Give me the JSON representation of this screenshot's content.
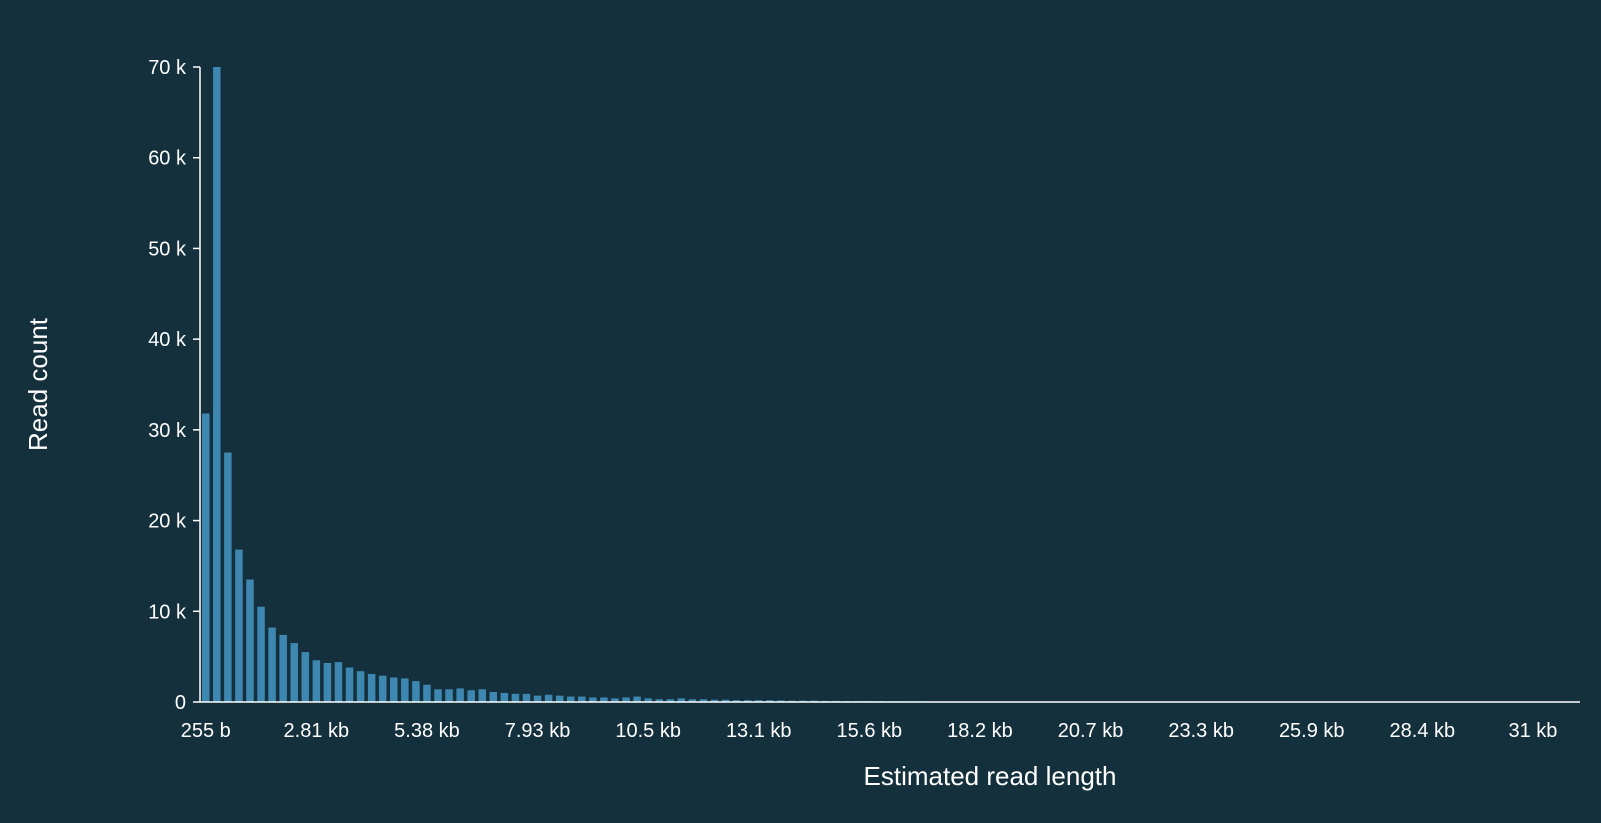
{
  "colors": {
    "background": "#14303d",
    "bar": "#3d87b0",
    "axis": "#ffffff",
    "text": "#ffffff"
  },
  "chart_data": {
    "type": "bar",
    "title": "",
    "xlabel": "Estimated read length",
    "ylabel": "Read count",
    "ylim": [
      0,
      70000
    ],
    "grid": false,
    "legend": "none",
    "y_ticks": [
      {
        "value": 0,
        "label": "0"
      },
      {
        "value": 10000,
        "label": "10 k"
      },
      {
        "value": 20000,
        "label": "20 k"
      },
      {
        "value": 30000,
        "label": "30 k"
      },
      {
        "value": 40000,
        "label": "40 k"
      },
      {
        "value": 50000,
        "label": "50 k"
      },
      {
        "value": 60000,
        "label": "60 k"
      },
      {
        "value": 70000,
        "label": "70 k"
      }
    ],
    "x_ticks": [
      {
        "bin": 0,
        "label": "255 b"
      },
      {
        "bin": 10,
        "label": "2.81 kb"
      },
      {
        "bin": 20,
        "label": "5.38 kb"
      },
      {
        "bin": 30,
        "label": "7.93 kb"
      },
      {
        "bin": 40,
        "label": "10.5 kb"
      },
      {
        "bin": 50,
        "label": "13.1 kb"
      },
      {
        "bin": 60,
        "label": "15.6 kb"
      },
      {
        "bin": 70,
        "label": "18.2 kb"
      },
      {
        "bin": 80,
        "label": "20.7 kb"
      },
      {
        "bin": 90,
        "label": "23.3 kb"
      },
      {
        "bin": 100,
        "label": "25.9 kb"
      },
      {
        "bin": 110,
        "label": "28.4 kb"
      },
      {
        "bin": 120,
        "label": "31 kb"
      }
    ],
    "bin_start": 255,
    "bin_width": 256,
    "values": [
      31800,
      70000,
      27500,
      16800,
      13500,
      10500,
      8200,
      7400,
      6500,
      5500,
      4600,
      4300,
      4400,
      3800,
      3400,
      3100,
      2900,
      2700,
      2600,
      2300,
      1900,
      1400,
      1400,
      1500,
      1300,
      1400,
      1100,
      1000,
      900,
      900,
      700,
      800,
      700,
      600,
      600,
      500,
      500,
      400,
      500,
      600,
      400,
      300,
      300,
      400,
      300,
      300,
      250,
      250,
      200,
      200,
      200,
      200,
      180,
      150,
      150,
      150,
      120,
      120,
      100,
      100,
      100,
      90,
      80,
      80,
      70,
      70,
      60,
      60,
      50,
      50,
      50,
      40,
      40,
      40,
      30,
      30,
      30,
      30,
      25,
      25,
      20,
      20,
      20,
      20,
      15,
      15,
      15,
      15,
      10,
      10,
      10,
      10,
      10,
      10,
      10,
      8,
      8,
      8,
      8,
      6,
      6,
      6,
      5,
      5,
      5,
      5,
      4,
      4,
      4,
      3,
      3,
      3,
      3,
      2,
      2,
      2,
      2,
      2,
      1,
      1,
      1,
      1,
      1,
      1
    ]
  }
}
